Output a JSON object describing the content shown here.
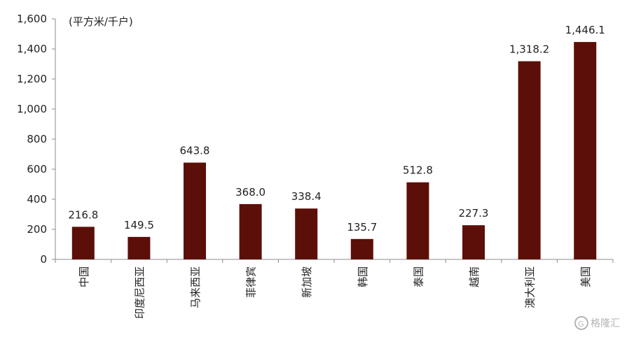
{
  "chart_data": {
    "type": "bar",
    "unit_label": "(平方米/千户)",
    "categories": [
      "中国",
      "印度尼西亚",
      "马来西亚",
      "菲律宾",
      "新加坡",
      "韩国",
      "泰国",
      "越南",
      "澳大利亚",
      "美国"
    ],
    "values": [
      216.8,
      149.5,
      643.8,
      368.0,
      338.4,
      135.7,
      512.8,
      227.3,
      1318.2,
      1446.1
    ],
    "value_labels": [
      "216.8",
      "149.5",
      "643.8",
      "368.0",
      "338.4",
      "135.7",
      "512.8",
      "227.3",
      "1,318.2",
      "1,446.1"
    ],
    "yticks": [
      0,
      200,
      400,
      600,
      800,
      1000,
      1200,
      1400,
      1600
    ],
    "ytick_labels": [
      "0",
      "200",
      "400",
      "600",
      "800",
      "1,000",
      "1,200",
      "1,400",
      "1,600"
    ],
    "ylim": [
      0,
      1600
    ],
    "grid": false,
    "bar_color": "#5c0f08"
  },
  "watermark": {
    "icon": "g-logo-icon",
    "text": "格隆汇"
  }
}
